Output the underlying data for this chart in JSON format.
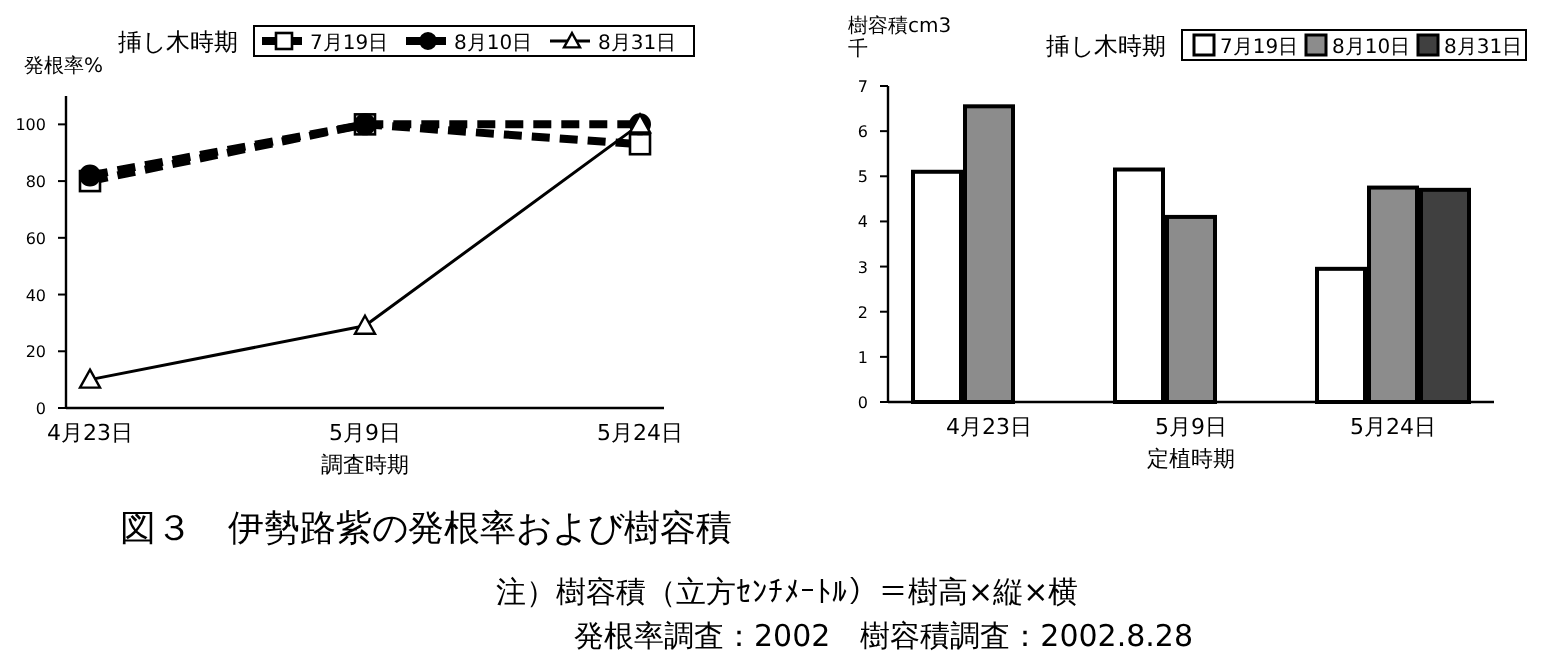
{
  "chart_data": [
    {
      "type": "line",
      "title": "図３　伊勢路紫の発根率および樹容積",
      "ylabel": "発根率%",
      "xlabel": "調査時期",
      "legend_title": "挿し木時期",
      "annotations": [
        "注）樹容積（立方ｾﾝﾁﾒｰﾄﾙ）＝樹高×縦×横",
        "発根率調査：2002　樹容積調査：2002.8.28"
      ],
      "categories": [
        "4月23日",
        "5月9日",
        "5月24日"
      ],
      "series": [
        {
          "name": "7月19日",
          "color": "#000000",
          "values": [
            80,
            100,
            93
          ],
          "marker": "square",
          "line_style": "dashed"
        },
        {
          "name": "8月10日",
          "color": "#000000",
          "values": [
            82,
            100,
            100
          ],
          "marker": "circle",
          "line_style": "dashed"
        },
        {
          "name": "8月31日",
          "color": "#000000",
          "values": [
            10,
            29,
            100
          ],
          "marker": "triangle",
          "line_style": "solid"
        }
      ],
      "ylim": [
        0,
        110
      ],
      "yticks": [
        0,
        20,
        40,
        60,
        80,
        100
      ],
      "legend": "top",
      "grid": false
    },
    {
      "type": "bar",
      "ylabel": "樹容積cm3\n千",
      "xlabel": "定植時期",
      "legend_title": "挿し木時期",
      "categories": [
        "4月23日",
        "5月9日",
        "5月24日"
      ],
      "series": [
        {
          "name": "7月19日",
          "color": "#ffffff",
          "values": [
            5.1,
            5.15,
            2.95
          ]
        },
        {
          "name": "8月10日",
          "color": "#8c8c8c",
          "values": [
            6.55,
            4.1,
            4.75
          ]
        },
        {
          "name": "8月31日",
          "color": "#404040",
          "values": [
            null,
            null,
            4.7
          ]
        }
      ],
      "ylim": [
        0,
        7
      ],
      "yticks": [
        0,
        1,
        2,
        3,
        4,
        5,
        6,
        7
      ],
      "legend": "top right",
      "grid": false
    }
  ]
}
